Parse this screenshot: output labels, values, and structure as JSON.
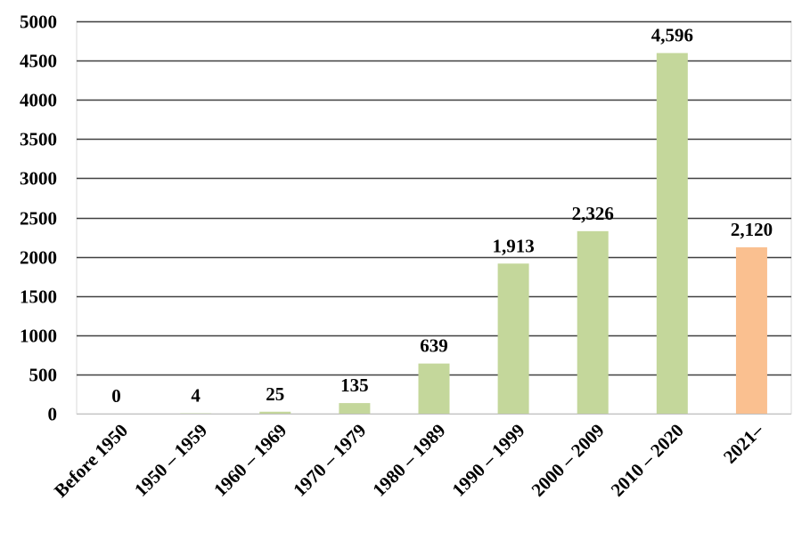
{
  "chart_data": {
    "type": "bar",
    "title": "",
    "xlabel": "",
    "ylabel": "",
    "ylim": [
      0,
      5000
    ],
    "yticks": [
      0,
      500,
      1000,
      1500,
      2000,
      2500,
      3000,
      3500,
      4000,
      4500,
      5000
    ],
    "grid": true,
    "legend": "none",
    "categories": [
      "Before 1950",
      "1950 – 1959",
      "1960 – 1969",
      "1970 – 1979",
      "1980 –  1989",
      "1990 –  1999",
      "2000 –  2009",
      "2010 –  2020",
      "2021–"
    ],
    "values": [
      0,
      4,
      25,
      135,
      639,
      1913,
      2326,
      4596,
      2120
    ],
    "data_labels": [
      "0",
      "4",
      "25",
      "135",
      "639",
      "1,913",
      "2,326",
      "4,596",
      "2,120"
    ],
    "colors": {
      "bar": "#c4d79b",
      "highlight_bar": "#fac090",
      "grid": "#404040",
      "border": "#d9d9d9"
    },
    "highlight_index": 8
  }
}
